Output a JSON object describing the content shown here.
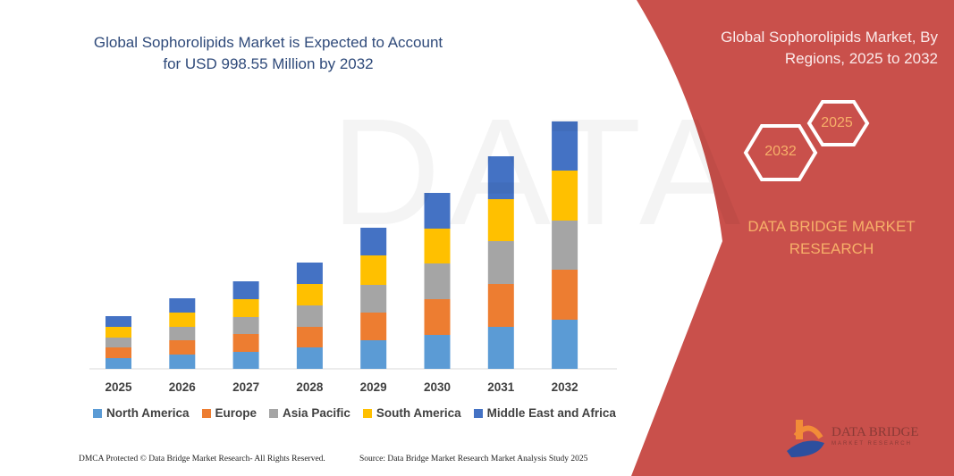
{
  "chart_data": {
    "type": "bar",
    "stacked": true,
    "title": "Global Sophorolipids Market is Expected to Account for USD 998.55 Million by 2032",
    "categories": [
      "2025",
      "2026",
      "2027",
      "2028",
      "2029",
      "2030",
      "2031",
      "2032"
    ],
    "series": [
      {
        "name": "North America",
        "color": "#5b9bd5",
        "values": [
          12,
          16,
          19,
          24,
          32,
          38,
          47,
          55
        ]
      },
      {
        "name": "Europe",
        "color": "#ed7d31",
        "values": [
          12,
          16,
          20,
          23,
          31,
          40,
          48,
          56
        ]
      },
      {
        "name": "Asia Pacific",
        "color": "#a5a5a5",
        "values": [
          11,
          15,
          19,
          24,
          31,
          40,
          48,
          55
        ]
      },
      {
        "name": "South America",
        "color": "#ffc000",
        "values": [
          12,
          16,
          20,
          24,
          33,
          39,
          47,
          56
        ]
      },
      {
        "name": "Middle East and Africa",
        "color": "#4472c4",
        "values": [
          12,
          16,
          20,
          24,
          31,
          40,
          48,
          55
        ]
      }
    ],
    "xlabel": "",
    "ylabel": "",
    "grid": false,
    "legend": "bottom"
  },
  "side_panel": {
    "title": "Global Sophorolipids Market, By Regions, 2025 to 2032",
    "hex_start": "2025",
    "hex_end": "2032",
    "brand": "DATA BRIDGE MARKET RESEARCH",
    "logo_text": "DATA BRIDGE",
    "logo_subtext": "MARKET RESEARCH",
    "color": "#c9504b"
  },
  "footer": {
    "left": "DMCA Protected © Data Bridge Market Research-  All Rights Reserved.",
    "right": "Source: Data Bridge Market Research  Market Analysis Study 2025"
  }
}
